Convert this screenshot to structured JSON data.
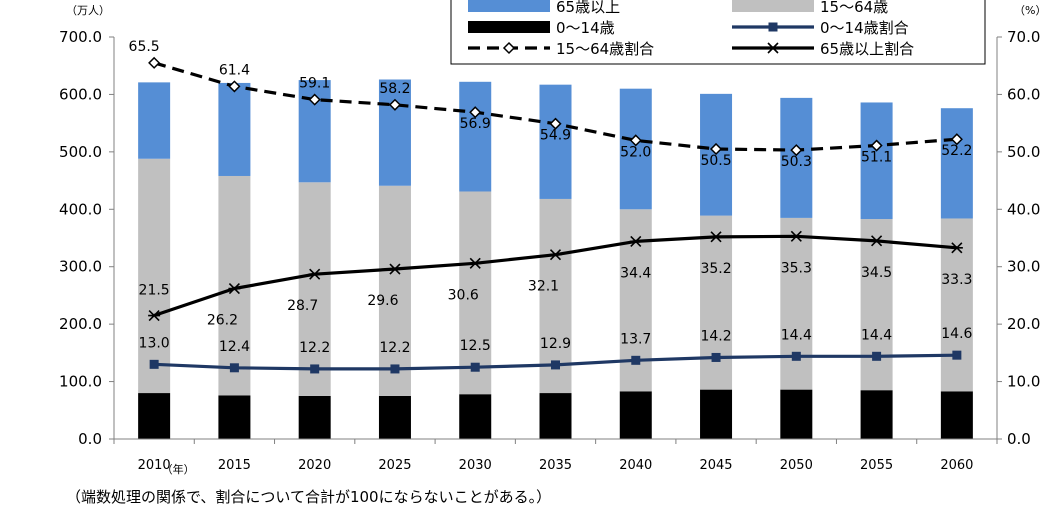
{
  "chart_data": {
    "type": "bar",
    "left_unit": "（万人）",
    "right_unit": "（%）",
    "x_unit": "（年）",
    "categories": [
      "2010",
      "2015",
      "2020",
      "2025",
      "2030",
      "2035",
      "2040",
      "2045",
      "2050",
      "2055",
      "2060"
    ],
    "left_axis": {
      "ylim": [
        0,
        700
      ],
      "ticks": [
        "0.0",
        "100.0",
        "200.0",
        "300.0",
        "400.0",
        "500.0",
        "600.0",
        "700.0"
      ]
    },
    "right_axis": {
      "ylim": [
        0,
        70
      ],
      "ticks": [
        "0.0",
        "10.0",
        "20.0",
        "30.0",
        "40.0",
        "50.0",
        "60.0",
        "70.0"
      ]
    },
    "grid": false,
    "stacked_bars": [
      {
        "name": "0～14歳",
        "color": "#000000",
        "values": [
          80,
          76,
          75,
          75,
          78,
          80,
          83,
          86,
          86,
          85,
          83
        ]
      },
      {
        "name": "15～64歳",
        "color": "#c0c0c0",
        "values": [
          408,
          382,
          372,
          366,
          353,
          338,
          317,
          303,
          299,
          298,
          301
        ]
      },
      {
        "name": "65歳以上",
        "color": "#558ed5",
        "values": [
          133,
          162,
          178,
          185,
          191,
          199,
          210,
          212,
          209,
          203,
          192
        ]
      }
    ],
    "line_series": [
      {
        "name": "0～14歳割合",
        "color": "#1f3864",
        "style": "solid",
        "marker": "square",
        "values": [
          13.0,
          12.4,
          12.2,
          12.2,
          12.5,
          12.9,
          13.7,
          14.2,
          14.4,
          14.4,
          14.6
        ],
        "labels": [
          "13.0",
          "12.4",
          "12.2",
          "12.2",
          "12.5",
          "12.9",
          "13.7",
          "14.2",
          "14.4",
          "14.4",
          "14.6"
        ]
      },
      {
        "name": "15～64歳割合",
        "color": "#000000",
        "style": "dashed",
        "marker": "diamond",
        "values": [
          65.5,
          61.4,
          59.1,
          58.2,
          56.9,
          54.9,
          52.0,
          50.5,
          50.3,
          51.1,
          52.2
        ],
        "labels": [
          "65.5",
          "61.4",
          "59.1",
          "58.2",
          "56.9",
          "54.9",
          "52.0",
          "50.5",
          "50.3",
          "51.1",
          "52.2"
        ]
      },
      {
        "name": "65歳以上割合",
        "color": "#000000",
        "style": "solid",
        "marker": "star",
        "values": [
          21.5,
          26.2,
          28.7,
          29.6,
          30.6,
          32.1,
          34.4,
          35.2,
          35.3,
          34.5,
          33.3
        ],
        "labels": [
          "21.5",
          "26.2",
          "28.7",
          "29.6",
          "30.6",
          "32.1",
          "34.4",
          "35.2",
          "35.3",
          "34.5",
          "33.3"
        ]
      }
    ],
    "legend_position": "top-center"
  },
  "note": "（端数処理の関係で、割合について合計が100にならないことがある。）"
}
